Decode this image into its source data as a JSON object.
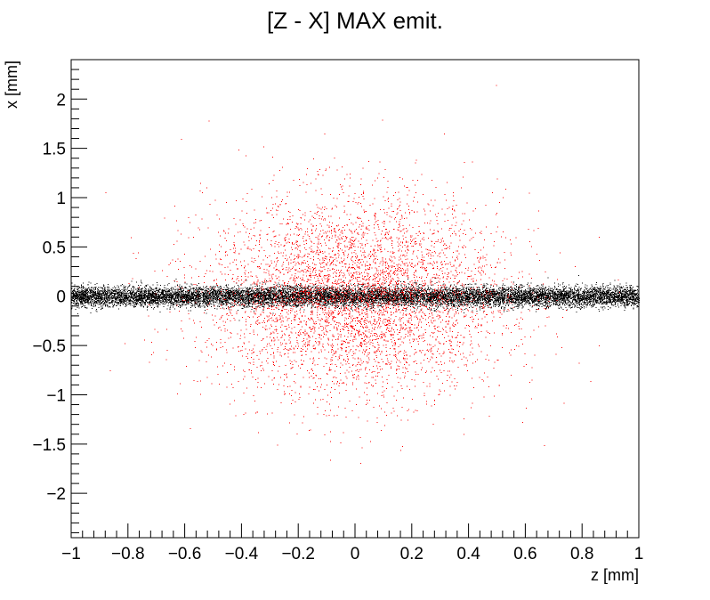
{
  "chart_data": {
    "type": "scatter",
    "title": "[Z - X] MAX emit.",
    "xlabel": "z [mm]",
    "ylabel": "x [mm]",
    "xlim": [
      -1,
      1
    ],
    "ylim": [
      -2.45,
      2.4
    ],
    "x_ticks": [
      {
        "value": -1,
        "label": "−1"
      },
      {
        "value": -0.8,
        "label": "−0.8"
      },
      {
        "value": -0.6,
        "label": "−0.6"
      },
      {
        "value": -0.4,
        "label": "−0.4"
      },
      {
        "value": -0.2,
        "label": "−0.2"
      },
      {
        "value": 0,
        "label": "0"
      },
      {
        "value": 0.2,
        "label": "0.2"
      },
      {
        "value": 0.4,
        "label": "0.4"
      },
      {
        "value": 0.6,
        "label": "0.6"
      },
      {
        "value": 0.8,
        "label": "0.8"
      },
      {
        "value": 1,
        "label": "1"
      }
    ],
    "y_ticks": [
      {
        "value": -2,
        "label": "−2"
      },
      {
        "value": -1.5,
        "label": "−1.5"
      },
      {
        "value": -1,
        "label": "−1"
      },
      {
        "value": -0.5,
        "label": "−0.5"
      },
      {
        "value": 0,
        "label": "0"
      },
      {
        "value": 0.5,
        "label": "0.5"
      },
      {
        "value": 1,
        "label": "1"
      },
      {
        "value": 1.5,
        "label": "1.5"
      },
      {
        "value": 2,
        "label": "2"
      }
    ],
    "grid": false,
    "series": [
      {
        "distribution": "band",
        "color": "#000000",
        "count": 24000,
        "x_range": [
          -1,
          1
        ],
        "y_center": 0,
        "y_spread": 0.05
      },
      {
        "distribution": "gaussian",
        "color": "#ff0000",
        "count": 19000,
        "x_center": 0,
        "x_sigma": 0.26,
        "y_center": 0,
        "y_sigma": 0.5
      }
    ]
  }
}
